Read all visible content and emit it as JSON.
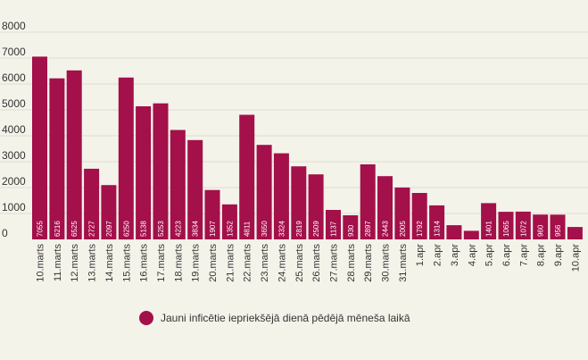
{
  "chart_data": {
    "type": "bar",
    "categories": [
      "10.marts",
      "11.marts",
      "12.marts",
      "13.marts",
      "14.marts",
      "15.marts",
      "16.marts",
      "17.marts",
      "18.marts",
      "19.marts",
      "20.marts",
      "21.marts",
      "22.marts",
      "23.marts",
      "24.marts",
      "25.marts",
      "26.marts",
      "27.marts",
      "28.marts",
      "29.marts",
      "30.marts",
      "31.marts",
      "1.apr",
      "2.apr",
      "3.apr",
      "4.apr",
      "5.apr",
      "6.apr",
      "7.apr",
      "8.apr",
      "9.apr",
      "10.apr"
    ],
    "series": [
      {
        "name": "Jauni inficētie iepriekšējā dienā pēdējā mēneša laikā",
        "values": [
          7055,
          6216,
          6525,
          2727,
          2097,
          6250,
          5138,
          5253,
          4223,
          3834,
          1907,
          1352,
          4811,
          3650,
          3324,
          2819,
          2509,
          1137,
          930,
          2897,
          2443,
          2005,
          1792,
          1314,
          550,
          330,
          1401,
          1065,
          1072,
          960,
          956,
          480
        ],
        "labels": [
          "7055",
          "6216",
          "6525",
          "2727",
          "2097",
          "6250",
          "5138",
          "5253",
          "4223",
          "3834",
          "1907",
          "1352",
          "4811",
          "3650",
          "3324",
          "2819",
          "2509",
          "1137",
          "930",
          "2897",
          "2443",
          "2005",
          "1792",
          "1314",
          "",
          "",
          "1401",
          "1065",
          "1072",
          "960",
          "956",
          ""
        ]
      }
    ],
    "ylim": [
      0,
      8000
    ],
    "yticks": [
      0,
      1000,
      2000,
      3000,
      4000,
      5000,
      6000,
      7000,
      8000
    ],
    "ytick_labels": [
      "0",
      "1000",
      "2000",
      "3000",
      "4000",
      "5000",
      "6000",
      "7000",
      "8000"
    ],
    "grid": true,
    "legend_position": "bottom",
    "title": "",
    "xlabel": "",
    "ylabel": ""
  },
  "colors": {
    "bar": "#a3104a",
    "background": "#f4f3ea",
    "grid": "#dedcd0",
    "text": "#333333"
  }
}
